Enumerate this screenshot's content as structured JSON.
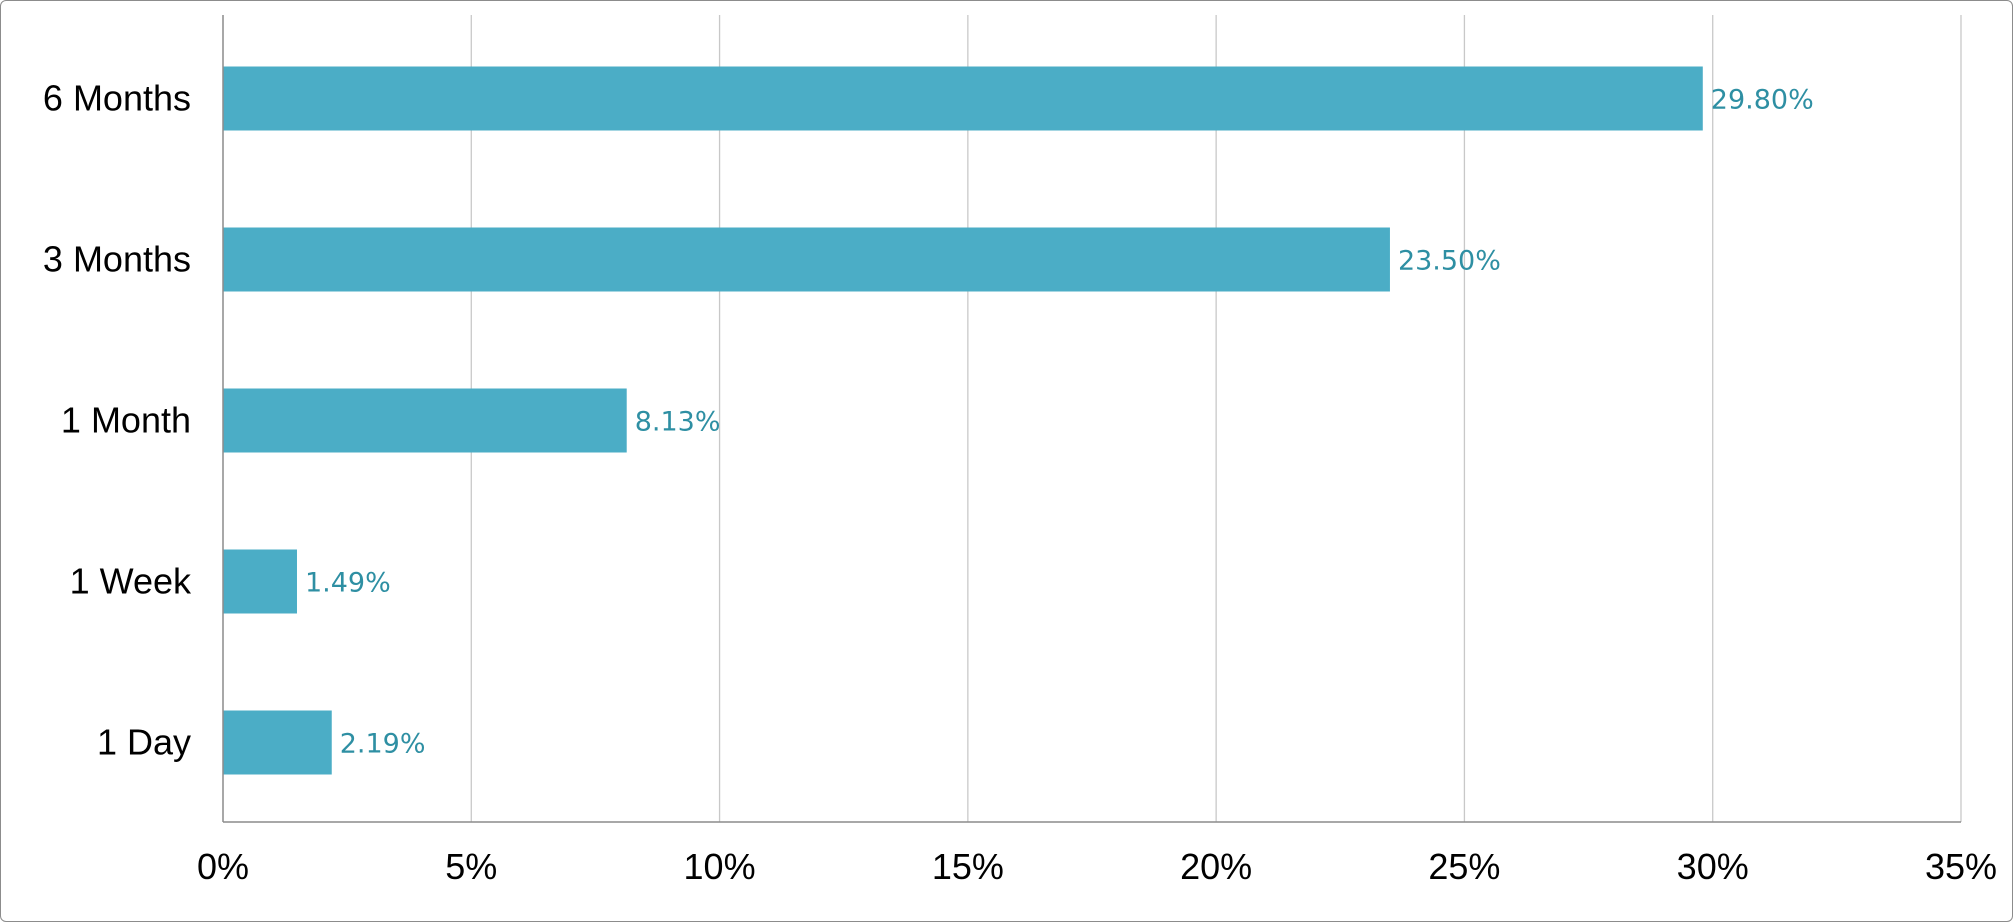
{
  "chart_data": {
    "type": "bar",
    "orientation": "horizontal",
    "categories": [
      "6 Months",
      "3 Months",
      "1 Month",
      "1 Week",
      "1 Day"
    ],
    "values": [
      29.8,
      23.5,
      8.13,
      1.49,
      2.19
    ],
    "data_labels": [
      "29.80%",
      "23.50%",
      "8.13%",
      "1.49%",
      "2.19%"
    ],
    "x_ticks": [
      "0%",
      "5%",
      "10%",
      "15%",
      "20%",
      "25%",
      "30%",
      "35%"
    ],
    "xlim": [
      0,
      35
    ],
    "x_step": 5,
    "grid": true,
    "legend": "none",
    "bar_color": "#4badc6",
    "label_color": "#2e8fa3"
  }
}
